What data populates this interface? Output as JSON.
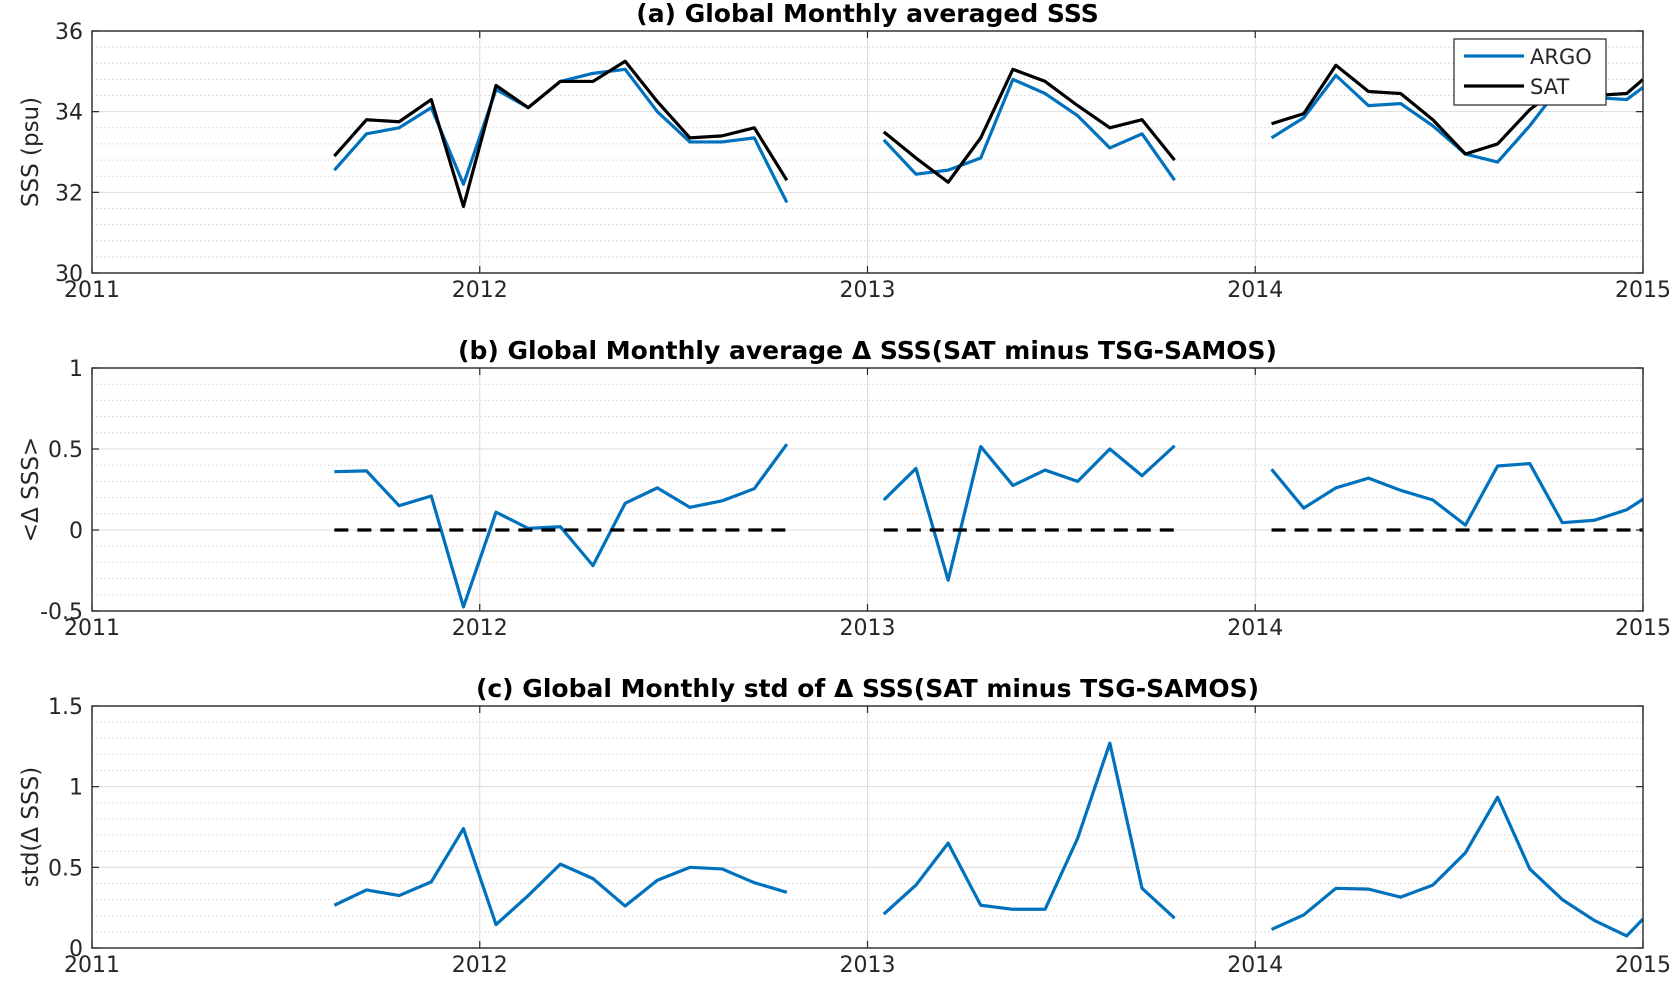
{
  "chart_data": [
    {
      "type": "line",
      "title": "(a) Global Monthly averaged SSS",
      "xlabel": "",
      "ylabel": "SSS (psu)",
      "xlim": [
        2011,
        2015
      ],
      "ylim": [
        30,
        36
      ],
      "xticks": [
        "2011",
        "2012",
        "2013",
        "2014",
        "2015"
      ],
      "yticks": [
        "30",
        "32",
        "34",
        "36"
      ],
      "grid": true,
      "minor_grid": true,
      "legend": "top-right",
      "series": [
        {
          "name": "ARGO",
          "color": "#0072BD",
          "dashed": false,
          "segments": [
            {
              "x": [
                2011.625,
                2011.708,
                2011.792,
                2011.875,
                2011.958,
                2012.042,
                2012.125,
                2012.208,
                2012.292,
                2012.375,
                2012.458,
                2012.542,
                2012.625,
                2012.708,
                2012.792
              ],
              "y": [
                32.55,
                33.45,
                33.6,
                34.1,
                32.2,
                34.55,
                34.1,
                34.75,
                34.95,
                35.05,
                34.0,
                33.25,
                33.25,
                33.35,
                31.75
              ]
            },
            {
              "x": [
                2013.042,
                2013.125,
                2013.208,
                2013.292,
                2013.375,
                2013.458,
                2013.542,
                2013.625,
                2013.708,
                2013.792
              ],
              "y": [
                33.3,
                32.45,
                32.55,
                32.85,
                34.8,
                34.45,
                33.9,
                33.1,
                33.45,
                32.3
              ]
            },
            {
              "x": [
                2014.042,
                2014.125,
                2014.208,
                2014.292,
                2014.375,
                2014.458,
                2014.542,
                2014.625,
                2014.708,
                2014.792,
                2014.875,
                2014.958,
                2015.0
              ],
              "y": [
                33.35,
                33.85,
                34.9,
                34.15,
                34.2,
                33.65,
                32.95,
                32.75,
                33.65,
                34.7,
                34.35,
                34.3,
                34.6
              ]
            }
          ]
        },
        {
          "name": "SAT",
          "color": "#000000",
          "dashed": false,
          "segments": [
            {
              "x": [
                2011.625,
                2011.708,
                2011.792,
                2011.875,
                2011.958,
                2012.042,
                2012.125,
                2012.208,
                2012.292,
                2012.375,
                2012.458,
                2012.542,
                2012.625,
                2012.708,
                2012.792
              ],
              "y": [
                32.9,
                33.8,
                33.75,
                34.3,
                31.65,
                34.65,
                34.1,
                34.75,
                34.75,
                35.25,
                34.25,
                33.35,
                33.4,
                33.6,
                32.3
              ]
            },
            {
              "x": [
                2013.042,
                2013.125,
                2013.208,
                2013.292,
                2013.375,
                2013.458,
                2013.542,
                2013.625,
                2013.708,
                2013.792
              ],
              "y": [
                33.5,
                32.85,
                32.25,
                33.35,
                35.05,
                34.75,
                34.15,
                33.6,
                33.8,
                32.8
              ]
            },
            {
              "x": [
                2014.042,
                2014.125,
                2014.208,
                2014.292,
                2014.375,
                2014.458,
                2014.542,
                2014.625,
                2014.708,
                2014.792,
                2014.875,
                2014.958,
                2015.0
              ],
              "y": [
                33.7,
                33.95,
                35.15,
                34.5,
                34.45,
                33.8,
                32.95,
                33.2,
                34.05,
                34.65,
                34.4,
                34.45,
                34.8
              ]
            }
          ]
        }
      ]
    },
    {
      "type": "line",
      "title": "(b) Global Monthly average Δ SSS(SAT minus TSG-SAMOS)",
      "xlabel": "",
      "ylabel": "<Δ SSS>",
      "xlim": [
        2011,
        2015
      ],
      "ylim": [
        -0.5,
        1
      ],
      "xticks": [
        "2011",
        "2012",
        "2013",
        "2014",
        "2015"
      ],
      "yticks": [
        "-0.5",
        "0",
        "0.5",
        "1"
      ],
      "grid": true,
      "minor_grid": true,
      "series": [
        {
          "color": "#0072BD",
          "dashed": false,
          "segments": [
            {
              "x": [
                2011.625,
                2011.708,
                2011.792,
                2011.875,
                2011.958,
                2012.042,
                2012.125,
                2012.208,
                2012.292,
                2012.375,
                2012.458,
                2012.542,
                2012.625,
                2012.708,
                2012.792
              ],
              "y": [
                0.36,
                0.365,
                0.15,
                0.21,
                -0.475,
                0.11,
                0.01,
                0.02,
                -0.22,
                0.165,
                0.26,
                0.14,
                0.18,
                0.255,
                0.53
              ]
            },
            {
              "x": [
                2013.042,
                2013.125,
                2013.208,
                2013.292,
                2013.375,
                2013.458,
                2013.542,
                2013.625,
                2013.708,
                2013.792
              ],
              "y": [
                0.185,
                0.38,
                -0.31,
                0.515,
                0.275,
                0.37,
                0.3,
                0.5,
                0.335,
                0.52
              ]
            },
            {
              "x": [
                2014.042,
                2014.125,
                2014.208,
                2014.292,
                2014.375,
                2014.458,
                2014.542,
                2014.625,
                2014.708,
                2014.792,
                2014.875,
                2014.958,
                2015.0
              ],
              "y": [
                0.375,
                0.135,
                0.26,
                0.32,
                0.245,
                0.185,
                0.03,
                0.395,
                0.41,
                0.045,
                0.06,
                0.125,
                0.19
              ]
            }
          ]
        },
        {
          "color": "#000000",
          "dashed": true,
          "segments": [
            {
              "x": [
                2011.625,
                2012.792
              ],
              "y": [
                0,
                0
              ]
            },
            {
              "x": [
                2013.042,
                2013.792
              ],
              "y": [
                0,
                0
              ]
            },
            {
              "x": [
                2014.042,
                2015.0
              ],
              "y": [
                0,
                0
              ]
            }
          ]
        }
      ]
    },
    {
      "type": "line",
      "title": "(c) Global Monthly std of Δ SSS(SAT minus TSG-SAMOS)",
      "xlabel": "",
      "ylabel": "std(Δ SSS)",
      "xlim": [
        2011,
        2015
      ],
      "ylim": [
        0,
        1.5
      ],
      "xticks": [
        "2011",
        "2012",
        "2013",
        "2014",
        "2015"
      ],
      "yticks": [
        "0",
        "0.5",
        "1",
        "1.5"
      ],
      "grid": true,
      "minor_grid": true,
      "series": [
        {
          "color": "#0072BD",
          "dashed": false,
          "segments": [
            {
              "x": [
                2011.625,
                2011.708,
                2011.792,
                2011.875,
                2011.958,
                2012.042,
                2012.125,
                2012.208,
                2012.292,
                2012.375,
                2012.458,
                2012.542,
                2012.625,
                2012.708,
                2012.792
              ],
              "y": [
                0.265,
                0.36,
                0.325,
                0.41,
                0.74,
                0.145,
                0.325,
                0.52,
                0.43,
                0.26,
                0.42,
                0.5,
                0.49,
                0.405,
                0.345
              ]
            },
            {
              "x": [
                2013.042,
                2013.125,
                2013.208,
                2013.292,
                2013.375,
                2013.458,
                2013.542,
                2013.625,
                2013.708,
                2013.792
              ],
              "y": [
                0.21,
                0.39,
                0.65,
                0.265,
                0.24,
                0.24,
                0.68,
                1.27,
                0.37,
                0.185
              ]
            },
            {
              "x": [
                2014.042,
                2014.125,
                2014.208,
                2014.292,
                2014.375,
                2014.458,
                2014.542,
                2014.625,
                2014.708,
                2014.792,
                2014.875,
                2014.958,
                2015.0
              ],
              "y": [
                0.115,
                0.205,
                0.37,
                0.365,
                0.315,
                0.39,
                0.59,
                0.935,
                0.49,
                0.3,
                0.17,
                0.075,
                0.18
              ]
            }
          ]
        }
      ]
    }
  ]
}
